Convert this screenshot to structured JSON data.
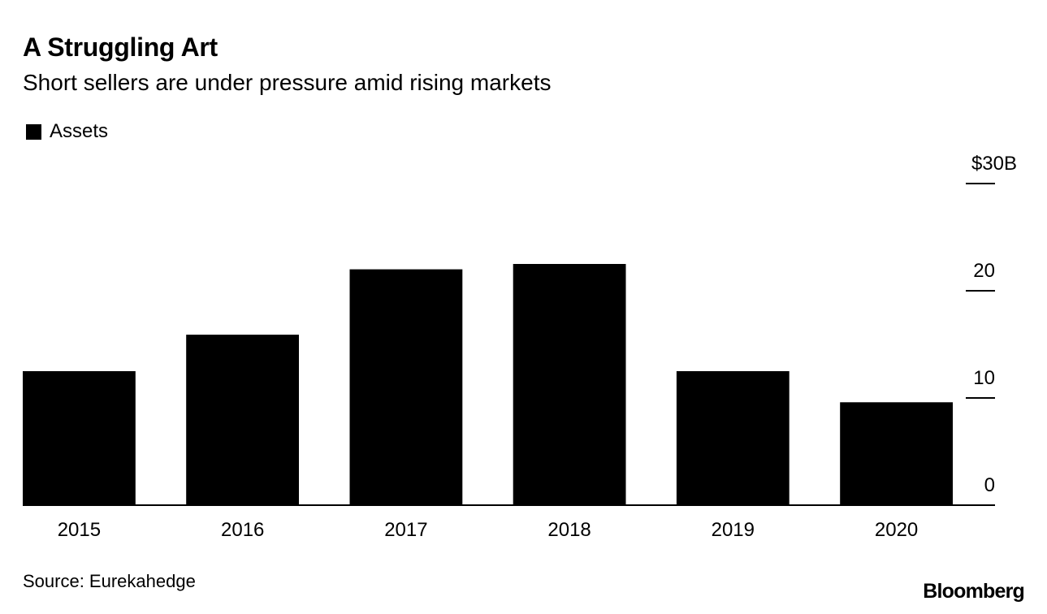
{
  "header": {
    "title": "A Struggling Art",
    "subtitle": "Short sellers are under pressure amid rising markets"
  },
  "footer": {
    "source": "Source: Eurekahedge",
    "brand": "Bloomberg"
  },
  "colors": {
    "bar": "#000000",
    "text": "#000000",
    "background": "#ffffff"
  },
  "chart_data": {
    "type": "bar",
    "title": "A Struggling Art",
    "subtitle": "Short sellers are under pressure amid rising markets",
    "categories": [
      "2015",
      "2016",
      "2017",
      "2018",
      "2019",
      "2020"
    ],
    "series": [
      {
        "name": "Assets",
        "values": [
          12.5,
          15.9,
          22.0,
          22.5,
          12.5,
          9.6
        ]
      }
    ],
    "legend": [
      "Assets"
    ],
    "legend_position": "top-left",
    "xlabel": "",
    "ylabel": "",
    "ylim": [
      0,
      30
    ],
    "yticks": [
      0,
      10,
      20,
      30
    ],
    "ytick_labels": [
      "0",
      "10",
      "20",
      "$30B"
    ],
    "y_axis_side": "right",
    "grid": false
  }
}
